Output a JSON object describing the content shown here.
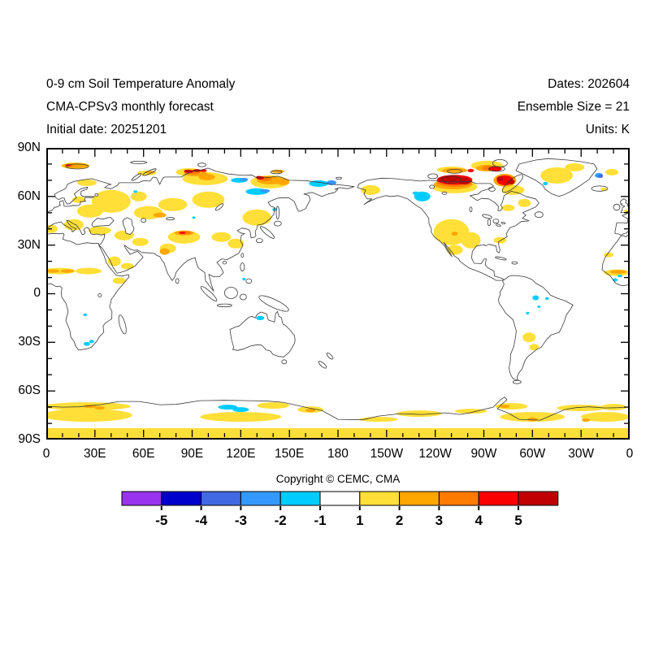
{
  "header": {
    "left_lines": [
      "0-9 cm Soil Temperature Anomaly",
      "CMA-CPSv3 monthly forecast",
      "Initial date: 20251201"
    ],
    "right_lines": [
      "Dates: 202604",
      "Ensemble Size = 21",
      "Units: K"
    ]
  },
  "axes": {
    "lat_labels": [
      "90N",
      "60N",
      "30N",
      "0",
      "30S",
      "60S",
      "90S"
    ],
    "lon_labels": [
      "0",
      "30E",
      "60E",
      "90E",
      "120E",
      "150E",
      "180",
      "150W",
      "120W",
      "90W",
      "60W",
      "30W",
      "0"
    ]
  },
  "footer": {
    "copyright": "Copyright © CEMC, CMA"
  },
  "colorbar": {
    "labels": [
      "-5",
      "-4",
      "-3",
      "-2",
      "-1",
      "1",
      "2",
      "3",
      "4",
      "5"
    ],
    "colors": [
      "#9933EE",
      "#0000CC",
      "#4169E1",
      "#3399FF",
      "#00CCFF",
      "#FFFFFF",
      "#FFDF38",
      "#FFA600",
      "#FF7B00",
      "#FA0000",
      "#C00000"
    ]
  },
  "chart_data": {
    "type": "heatmap",
    "title": "0-9 cm Soil Temperature Anomaly",
    "model": "CMA-CPSv3 monthly forecast",
    "initial_date": "20251201",
    "forecast_date": "202604",
    "ensemble_size": 21,
    "units": "K",
    "projection": "equirectangular",
    "lon_range": [
      0,
      360
    ],
    "lat_range": [
      -90,
      90
    ],
    "levels": [
      -5,
      -4,
      -3,
      -2,
      -1,
      1,
      2,
      3,
      4,
      5
    ],
    "palette": {
      "-5": "#9933EE",
      "-4": "#0000CC",
      "-3": "#4169E1",
      "-2": "#3399FF",
      "-1": "#00CCFF",
      "1": "#FFDF38",
      "2": "#FFA600",
      "3": "#FF7B00",
      "4": "#FA0000",
      "5": "#C00000"
    },
    "regions_format": [
      "lon_deg_east_0_360",
      "lat_deg",
      "half_width_deg",
      "half_height_deg",
      "anomaly_level",
      "optional_shape_r_rect"
    ],
    "regions": [
      [
        3,
        40,
        4,
        2.5,
        1
      ],
      [
        17,
        42.5,
        6,
        3.5,
        1
      ],
      [
        33,
        39,
        7,
        2.5,
        1
      ],
      [
        27,
        51,
        8,
        4,
        1
      ],
      [
        40,
        57,
        12,
        7,
        1
      ],
      [
        25,
        68.5,
        6,
        2,
        1
      ],
      [
        20,
        58,
        4,
        2,
        1
      ],
      [
        57,
        60,
        5,
        3,
        1
      ],
      [
        63,
        50,
        9,
        4,
        1
      ],
      [
        78,
        55,
        9,
        4,
        1
      ],
      [
        100,
        58,
        10,
        5,
        1
      ],
      [
        130,
        47,
        9,
        5,
        1
      ],
      [
        48,
        36,
        6,
        3,
        1
      ],
      [
        58,
        32,
        5,
        2.5,
        1
      ],
      [
        42,
        20,
        4,
        3,
        1
      ],
      [
        50,
        17,
        4,
        2,
        1
      ],
      [
        45,
        8,
        4,
        2,
        1
      ],
      [
        26,
        14,
        8,
        2,
        1
      ],
      [
        8,
        14,
        10,
        2,
        1
      ],
      [
        352,
        13,
        8,
        2,
        1
      ],
      [
        347,
        24,
        3,
        1.5,
        1
      ],
      [
        85,
        35,
        10,
        4,
        1
      ],
      [
        75,
        28,
        5,
        3,
        1
      ],
      [
        108,
        35,
        6,
        3,
        1
      ],
      [
        117,
        31,
        5,
        3,
        1
      ],
      [
        98,
        71,
        14,
        4,
        1
      ],
      [
        88,
        75,
        8,
        2.5,
        1
      ],
      [
        62,
        74.5,
        6,
        1.5,
        1
      ],
      [
        18,
        79,
        9,
        2,
        1
      ],
      [
        138,
        69,
        12,
        4,
        1
      ],
      [
        200,
        64,
        6,
        3,
        1
      ],
      [
        250,
        38,
        11,
        8,
        1
      ],
      [
        262,
        33,
        6,
        5,
        1
      ],
      [
        280,
        33,
        4,
        2,
        1
      ],
      [
        252,
        27,
        5,
        3,
        1
      ],
      [
        285,
        53,
        4,
        2,
        1
      ],
      [
        295,
        56,
        4,
        2.5,
        1
      ],
      [
        252,
        66,
        14,
        4,
        1
      ],
      [
        250,
        76.5,
        9,
        2,
        1
      ],
      [
        288,
        64,
        7,
        3,
        1
      ],
      [
        272,
        79,
        10,
        3,
        1
      ],
      [
        315,
        73,
        10,
        5,
        1
      ],
      [
        326,
        78,
        6,
        2.5,
        1
      ],
      [
        349,
        75,
        4,
        2,
        1
      ],
      [
        344,
        64.5,
        2,
        1,
        1
      ],
      [
        358,
        51,
        1.5,
        1,
        1
      ],
      [
        298,
        -27,
        4,
        3,
        1
      ],
      [
        301,
        -33,
        3,
        2,
        1
      ],
      [
        25,
        -69.5,
        27,
        2.5,
        1
      ],
      [
        25,
        -75,
        28,
        4,
        1
      ],
      [
        120,
        -76,
        25,
        3,
        1
      ],
      [
        140,
        -69,
        10,
        2,
        1
      ],
      [
        163,
        -71.5,
        8,
        2,
        1
      ],
      [
        205,
        -77.5,
        12,
        1.5,
        1
      ],
      [
        230,
        -74,
        14,
        2,
        1
      ],
      [
        262,
        -72.5,
        10,
        1.5,
        1
      ],
      [
        287,
        -69.5,
        10,
        2,
        1
      ],
      [
        300,
        -76,
        20,
        3,
        1
      ],
      [
        330,
        -70.5,
        15,
        2,
        1
      ],
      [
        350,
        -70,
        8,
        2,
        1
      ],
      [
        345,
        -76,
        15,
        3,
        1
      ],
      [
        180,
        -86.5,
        180,
        3.5,
        1,
        "r"
      ],
      [
        18,
        79,
        8,
        1.6,
        2
      ],
      [
        64,
        75,
        3,
        0.8,
        2
      ],
      [
        92,
        74.5,
        7,
        2,
        2
      ],
      [
        99,
        72,
        5,
        2,
        2
      ],
      [
        138,
        70,
        8,
        2.5,
        2
      ],
      [
        146,
        69,
        4,
        2,
        2
      ],
      [
        143,
        75.5,
        4,
        1,
        2
      ],
      [
        85,
        37.5,
        6,
        1.5,
        2
      ],
      [
        73,
        26,
        3,
        2,
        2
      ],
      [
        70,
        48.5,
        4,
        1.5,
        2
      ],
      [
        4,
        14,
        4,
        1,
        2
      ],
      [
        13,
        14,
        4,
        1,
        2
      ],
      [
        353,
        13.5,
        5,
        1.2,
        2
      ],
      [
        252,
        37,
        2,
        1.2,
        2
      ],
      [
        251,
        67.5,
        12,
        3,
        2
      ],
      [
        252,
        76,
        8,
        1.5,
        2
      ],
      [
        272,
        77.5,
        7,
        2,
        2
      ],
      [
        283,
        70,
        7,
        4,
        2
      ],
      [
        27,
        -69.5,
        4,
        1,
        2
      ],
      [
        33,
        -70.5,
        3,
        1,
        2
      ],
      [
        163,
        -72,
        3,
        1,
        2
      ],
      [
        283,
        -69.5,
        3,
        1,
        2
      ],
      [
        333,
        -78,
        2.5,
        1,
        2
      ],
      [
        300,
        -77.5,
        3,
        1.2,
        2
      ],
      [
        91,
        75,
        4,
        1.3,
        3
      ],
      [
        135,
        71,
        4,
        1.5,
        3
      ],
      [
        85.5,
        37.6,
        4,
        1,
        3
      ],
      [
        252,
        69,
        11,
        3,
        3
      ],
      [
        284,
        70,
        5,
        3,
        3
      ],
      [
        274,
        77.5,
        5,
        1.5,
        3
      ],
      [
        14,
        79,
        2.5,
        0.9,
        3
      ],
      [
        88,
        75.5,
        3,
        1,
        4
      ],
      [
        97,
        76,
        2,
        0.8,
        4
      ],
      [
        132,
        71.5,
        2.5,
        1,
        4
      ],
      [
        84,
        37.6,
        2,
        0.7,
        4
      ],
      [
        252,
        70.3,
        11,
        3,
        4
      ],
      [
        283,
        70,
        5,
        3,
        4
      ],
      [
        277,
        77,
        4,
        1.5,
        4
      ],
      [
        262,
        76,
        2,
        1,
        4
      ],
      [
        13.5,
        79.3,
        1.5,
        0.6,
        4
      ],
      [
        250,
        70.8,
        8,
        2,
        5
      ],
      [
        258,
        69.5,
        4,
        2,
        5
      ],
      [
        287,
        69,
        2,
        1.5,
        5
      ],
      [
        280,
        71,
        2,
        1.5,
        5
      ],
      [
        93,
        76,
        2.5,
        0.8,
        5
      ],
      [
        87,
        75.8,
        2,
        0.7,
        5
      ],
      [
        131,
        72,
        1.5,
        0.7,
        5
      ],
      [
        119,
        70,
        5,
        1.5,
        -1
      ],
      [
        130,
        63,
        7,
        2,
        -1
      ],
      [
        168,
        68,
        6,
        2,
        -1
      ],
      [
        141,
        52,
        1.5,
        1,
        -1
      ],
      [
        55,
        63,
        1.2,
        0.8,
        -1
      ],
      [
        91,
        47,
        1,
        0.7,
        -1
      ],
      [
        232,
        60,
        5,
        3,
        -1
      ],
      [
        228,
        62,
        2,
        1,
        -1
      ],
      [
        25,
        -31,
        2,
        1.2,
        -1
      ],
      [
        28,
        -29.5,
        1.5,
        1,
        -1
      ],
      [
        24,
        -13,
        1.2,
        0.8,
        -1
      ],
      [
        302,
        -2.5,
        2,
        1.5,
        -1
      ],
      [
        309,
        -3,
        1.2,
        0.8,
        -1
      ],
      [
        297,
        -12,
        1,
        0.8,
        -1
      ],
      [
        304,
        -8,
        1,
        0.7,
        -1
      ],
      [
        132,
        -15,
        2.5,
        1.3,
        -1
      ],
      [
        122,
        9,
        1,
        0.8,
        -1
      ],
      [
        308,
        68,
        1.5,
        1,
        -1
      ],
      [
        112,
        -70,
        6,
        1.5,
        -1
      ],
      [
        120,
        -71.5,
        5,
        1.5,
        -1
      ],
      [
        354,
        11,
        1.5,
        0.8,
        -1
      ],
      [
        351,
        8.5,
        1.5,
        1,
        -1
      ],
      [
        122,
        70.5,
        2.5,
        1,
        -2
      ],
      [
        135,
        63.5,
        3,
        1,
        -2
      ],
      [
        176,
        68.5,
        3,
        1.5,
        -2
      ],
      [
        341,
        73,
        2.5,
        1.5,
        -2
      ],
      [
        342,
        72.5,
        1.5,
        1,
        -3
      ]
    ]
  }
}
